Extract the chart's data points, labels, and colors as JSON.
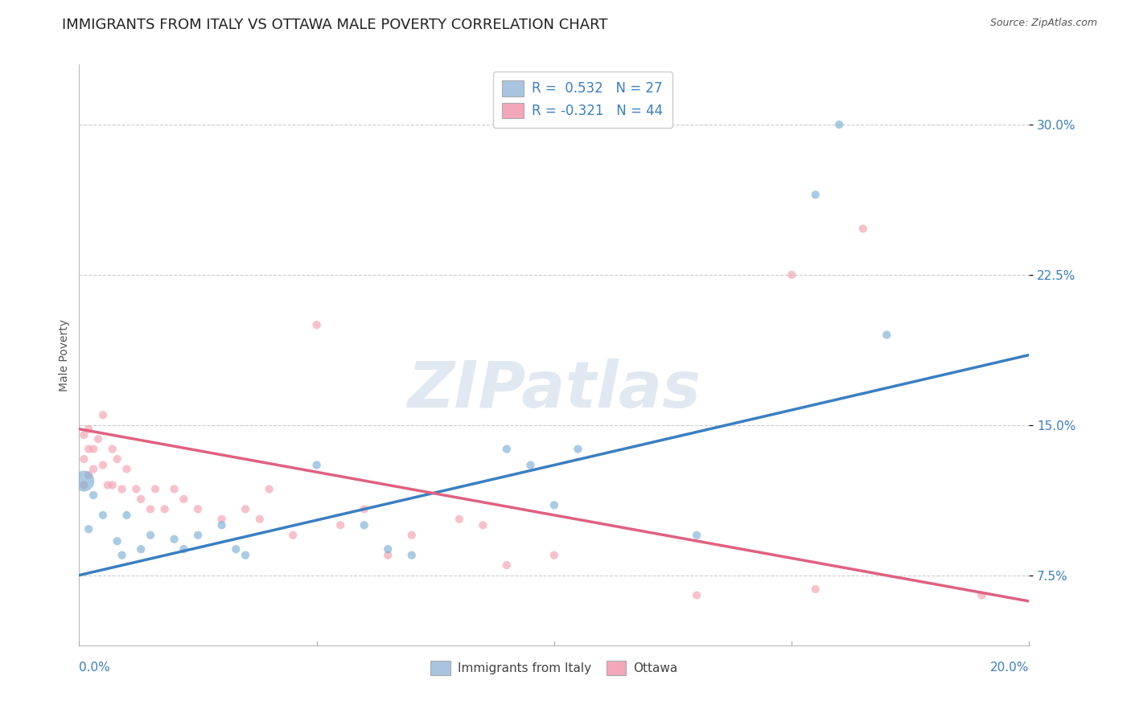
{
  "title": "IMMIGRANTS FROM ITALY VS OTTAWA MALE POVERTY CORRELATION CHART",
  "source": "Source: ZipAtlas.com",
  "ylabel": "Male Poverty",
  "y_ticks": [
    7.5,
    15.0,
    22.5,
    30.0
  ],
  "y_tick_labels": [
    "7.5%",
    "15.0%",
    "22.5%",
    "30.0%"
  ],
  "xmin": 0.0,
  "xmax": 20.0,
  "ymin": 4.0,
  "ymax": 33.0,
  "watermark": "ZIPatlas",
  "legend_r": {
    "series1_label": "R =  0.532   N = 27",
    "series2_label": "R = -0.321   N = 44",
    "series1_color": "#a8c4e0",
    "series2_color": "#f4a7b9"
  },
  "blue_points": [
    [
      0.1,
      12.2
    ],
    [
      0.2,
      9.8
    ],
    [
      0.3,
      11.5
    ],
    [
      0.5,
      10.5
    ],
    [
      0.8,
      9.2
    ],
    [
      0.9,
      8.5
    ],
    [
      1.0,
      10.5
    ],
    [
      1.3,
      8.8
    ],
    [
      1.5,
      9.5
    ],
    [
      2.0,
      9.3
    ],
    [
      2.2,
      8.8
    ],
    [
      2.5,
      9.5
    ],
    [
      3.0,
      10.0
    ],
    [
      3.3,
      8.8
    ],
    [
      3.5,
      8.5
    ],
    [
      5.0,
      13.0
    ],
    [
      6.0,
      10.0
    ],
    [
      6.5,
      8.8
    ],
    [
      7.0,
      8.5
    ],
    [
      9.0,
      13.8
    ],
    [
      9.5,
      13.0
    ],
    [
      10.0,
      11.0
    ],
    [
      10.5,
      13.8
    ],
    [
      13.0,
      9.5
    ],
    [
      15.5,
      26.5
    ],
    [
      16.0,
      30.0
    ],
    [
      17.0,
      19.5
    ]
  ],
  "pink_points": [
    [
      0.1,
      14.5
    ],
    [
      0.1,
      13.3
    ],
    [
      0.1,
      12.0
    ],
    [
      0.2,
      14.8
    ],
    [
      0.2,
      13.8
    ],
    [
      0.2,
      12.5
    ],
    [
      0.3,
      13.8
    ],
    [
      0.3,
      12.8
    ],
    [
      0.4,
      14.3
    ],
    [
      0.5,
      15.5
    ],
    [
      0.5,
      13.0
    ],
    [
      0.6,
      12.0
    ],
    [
      0.7,
      13.8
    ],
    [
      0.7,
      12.0
    ],
    [
      0.8,
      13.3
    ],
    [
      0.9,
      11.8
    ],
    [
      1.0,
      12.8
    ],
    [
      1.2,
      11.8
    ],
    [
      1.3,
      11.3
    ],
    [
      1.5,
      10.8
    ],
    [
      1.6,
      11.8
    ],
    [
      1.8,
      10.8
    ],
    [
      2.0,
      11.8
    ],
    [
      2.2,
      11.3
    ],
    [
      2.5,
      10.8
    ],
    [
      3.0,
      10.3
    ],
    [
      3.5,
      10.8
    ],
    [
      3.8,
      10.3
    ],
    [
      4.0,
      11.8
    ],
    [
      4.5,
      9.5
    ],
    [
      5.0,
      20.0
    ],
    [
      5.5,
      10.0
    ],
    [
      6.0,
      10.8
    ],
    [
      6.5,
      8.5
    ],
    [
      7.0,
      9.5
    ],
    [
      8.0,
      10.3
    ],
    [
      8.5,
      10.0
    ],
    [
      9.0,
      8.0
    ],
    [
      10.0,
      8.5
    ],
    [
      13.0,
      6.5
    ],
    [
      15.0,
      22.5
    ],
    [
      15.5,
      6.8
    ],
    [
      16.5,
      24.8
    ],
    [
      19.0,
      6.5
    ]
  ],
  "blue_line": {
    "x0": 0.0,
    "y0": 7.5,
    "x1": 20.0,
    "y1": 18.5
  },
  "pink_line": {
    "x0": 0.0,
    "y0": 14.8,
    "x1": 20.0,
    "y1": 6.2
  },
  "blue_color": "#7bafd4",
  "pink_color": "#f4a0b0",
  "line_blue": "#3a7fc1",
  "line_pink": "#e06080",
  "bg_color": "#ffffff",
  "grid_color": "#cccccc",
  "title_fontsize": 13,
  "axis_label_fontsize": 10,
  "tick_fontsize": 11,
  "legend_fontsize": 12,
  "blue_large_point_idx": 0,
  "blue_large_size": 350,
  "default_point_size": 55
}
